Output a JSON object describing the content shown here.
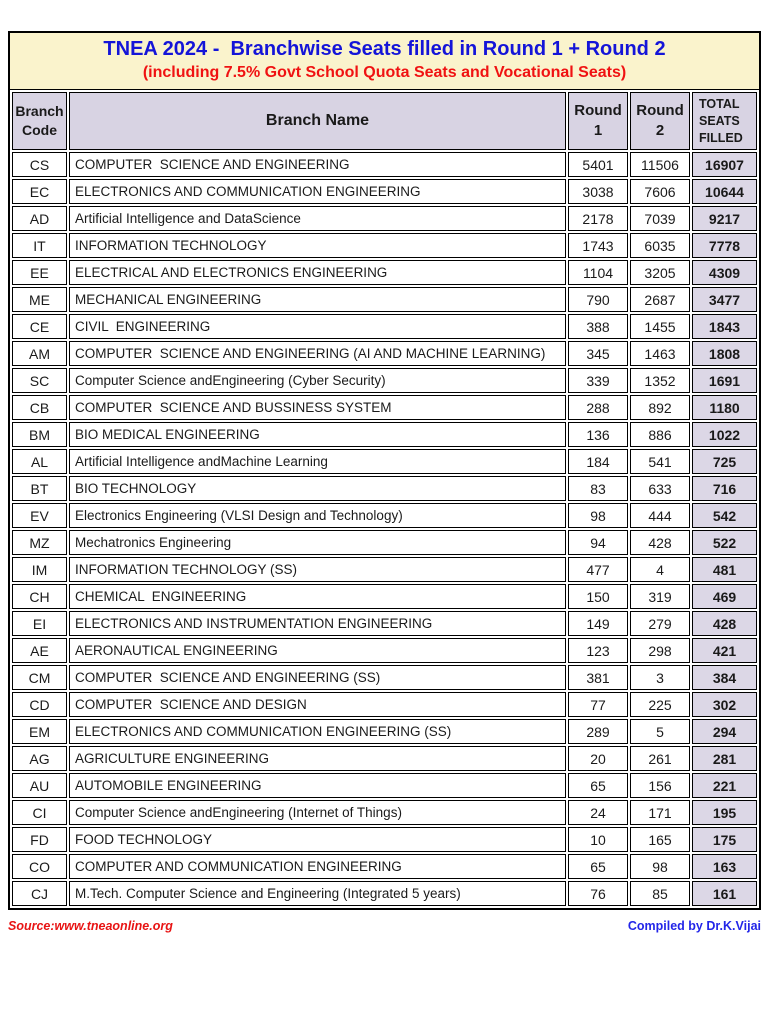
{
  "header": {
    "title": "TNEA 2024 -  Branchwise Seats filled in Round 1 + Round 2",
    "subtitle": "(including 7.5% Govt School Quota Seats and Vocational Seats)"
  },
  "table": {
    "columns": [
      "Branch\nCode",
      "Branch Name",
      "Round\n1",
      "Round\n2",
      "TOTAL\nSEATS\nFILLED"
    ],
    "rows": [
      {
        "code": "CS",
        "name": "COMPUTER  SCIENCE AND ENGINEERING",
        "round1": "5401",
        "round2": "11506",
        "total": "16907"
      },
      {
        "code": "EC",
        "name": "ELECTRONICS AND COMMUNICATION ENGINEERING",
        "round1": "3038",
        "round2": "7606",
        "total": "10644"
      },
      {
        "code": "AD",
        "name": "Artificial Intelligence and DataScience",
        "round1": "2178",
        "round2": "7039",
        "total": "9217"
      },
      {
        "code": "IT",
        "name": "INFORMATION TECHNOLOGY",
        "round1": "1743",
        "round2": "6035",
        "total": "7778"
      },
      {
        "code": "EE",
        "name": "ELECTRICAL AND ELECTRONICS ENGINEERING",
        "round1": "1104",
        "round2": "3205",
        "total": "4309"
      },
      {
        "code": "ME",
        "name": "MECHANICAL ENGINEERING",
        "round1": "790",
        "round2": "2687",
        "total": "3477"
      },
      {
        "code": "CE",
        "name": "CIVIL  ENGINEERING",
        "round1": "388",
        "round2": "1455",
        "total": "1843"
      },
      {
        "code": "AM",
        "name": "COMPUTER  SCIENCE AND ENGINEERING (AI AND MACHINE LEARNING)",
        "round1": "345",
        "round2": "1463",
        "total": "1808"
      },
      {
        "code": "SC",
        "name": "Computer Science andEngineering (Cyber Security)",
        "round1": "339",
        "round2": "1352",
        "total": "1691"
      },
      {
        "code": "CB",
        "name": "COMPUTER  SCIENCE AND BUSSINESS SYSTEM",
        "round1": "288",
        "round2": "892",
        "total": "1180"
      },
      {
        "code": "BM",
        "name": "BIO MEDICAL ENGINEERING",
        "round1": "136",
        "round2": "886",
        "total": "1022"
      },
      {
        "code": "AL",
        "name": "Artificial Intelligence andMachine Learning",
        "round1": "184",
        "round2": "541",
        "total": "725"
      },
      {
        "code": "BT",
        "name": "BIO TECHNOLOGY",
        "round1": "83",
        "round2": "633",
        "total": "716"
      },
      {
        "code": "EV",
        "name": "Electronics Engineering (VLSI Design and Technology)",
        "round1": "98",
        "round2": "444",
        "total": "542"
      },
      {
        "code": "MZ",
        "name": "Mechatronics Engineering",
        "round1": "94",
        "round2": "428",
        "total": "522"
      },
      {
        "code": "IM",
        "name": "INFORMATION TECHNOLOGY (SS)",
        "round1": "477",
        "round2": "4",
        "total": "481"
      },
      {
        "code": "CH",
        "name": "CHEMICAL  ENGINEERING",
        "round1": "150",
        "round2": "319",
        "total": "469"
      },
      {
        "code": "EI",
        "name": "ELECTRONICS AND INSTRUMENTATION ENGINEERING",
        "round1": "149",
        "round2": "279",
        "total": "428"
      },
      {
        "code": "AE",
        "name": "AERONAUTICAL ENGINEERING",
        "round1": "123",
        "round2": "298",
        "total": "421"
      },
      {
        "code": "CM",
        "name": "COMPUTER  SCIENCE AND ENGINEERING (SS)",
        "round1": "381",
        "round2": "3",
        "total": "384"
      },
      {
        "code": "CD",
        "name": "COMPUTER  SCIENCE AND DESIGN",
        "round1": "77",
        "round2": "225",
        "total": "302"
      },
      {
        "code": "EM",
        "name": "ELECTRONICS AND COMMUNICATION ENGINEERING (SS)",
        "round1": "289",
        "round2": "5",
        "total": "294"
      },
      {
        "code": "AG",
        "name": "AGRICULTURE ENGINEERING",
        "round1": "20",
        "round2": "261",
        "total": "281"
      },
      {
        "code": "AU",
        "name": "AUTOMOBILE ENGINEERING",
        "round1": "65",
        "round2": "156",
        "total": "221"
      },
      {
        "code": "CI",
        "name": "Computer Science andEngineering (Internet of Things)",
        "round1": "24",
        "round2": "171",
        "total": "195"
      },
      {
        "code": "FD",
        "name": "FOOD TECHNOLOGY",
        "round1": "10",
        "round2": "165",
        "total": "175"
      },
      {
        "code": "CO",
        "name": "COMPUTER AND COMMUNICATION ENGINEERING",
        "round1": "65",
        "round2": "98",
        "total": "163"
      },
      {
        "code": "CJ",
        "name": "M.Tech. Computer Science and Engineering (Integrated 5 years)",
        "round1": "76",
        "round2": "85",
        "total": "161"
      }
    ]
  },
  "footer": {
    "source": "Source:www.tneaonline.org",
    "compiled_by": "Compiled by Dr.K.Vijai"
  },
  "colors": {
    "title_bg": "#faf3cc",
    "title_text": "#1414d8",
    "subtitle_text": "#f01212",
    "header_bg": "#d8d3e3",
    "total_bg": "#dcd7e6",
    "source_text": "#e81414",
    "compiled_text": "#2326e8"
  }
}
